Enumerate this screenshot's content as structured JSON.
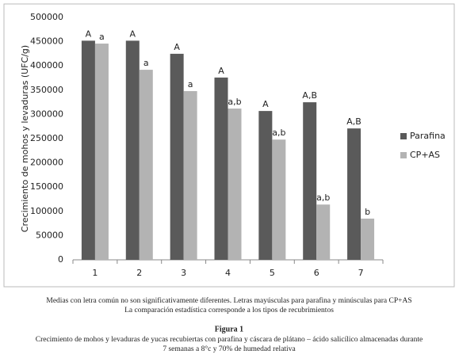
{
  "chart_data": {
    "type": "bar",
    "y_label": "Crecimiento de mohos y levaduras (UFC/g)",
    "categories": [
      "1",
      "2",
      "3",
      "4",
      "5",
      "6",
      "7"
    ],
    "series": [
      {
        "name": "Parafina",
        "color": "#5a5a5a",
        "values": [
          452000,
          452000,
          425000,
          376000,
          307000,
          325000,
          271000
        ],
        "labels": [
          "A",
          "A",
          "A",
          "A",
          "A",
          "A,B",
          "A,B"
        ]
      },
      {
        "name": "CP+AS",
        "color": "#b3b3b3",
        "values": [
          446000,
          392000,
          348000,
          312000,
          248000,
          114000,
          85000
        ],
        "labels": [
          "a",
          "a",
          "a",
          "a,b",
          "a,b",
          "a,b",
          "b"
        ]
      }
    ],
    "ylim": [
      0,
      500000
    ],
    "yticks": [
      0,
      50000,
      100000,
      150000,
      200000,
      250000,
      300000,
      350000,
      400000,
      450000,
      500000
    ],
    "grid": false,
    "legend": "right"
  },
  "captions": {
    "notes": [
      "Medias con letra común no son significativamente diferentes. Letras mayúsculas para parafina y minúsculas para CP+AS",
      "La comparación estadística corresponde a los tipos de recubrimientos"
    ],
    "figure_label": "Figura 1",
    "figure_caption": [
      "Crecimiento de mohos y levaduras  de yucas recubiertas con parafina y cáscara de plátano – ácido salicílico almacenadas  durante",
      "7 semanas a 8°c y 70% de humedad relativa"
    ]
  }
}
